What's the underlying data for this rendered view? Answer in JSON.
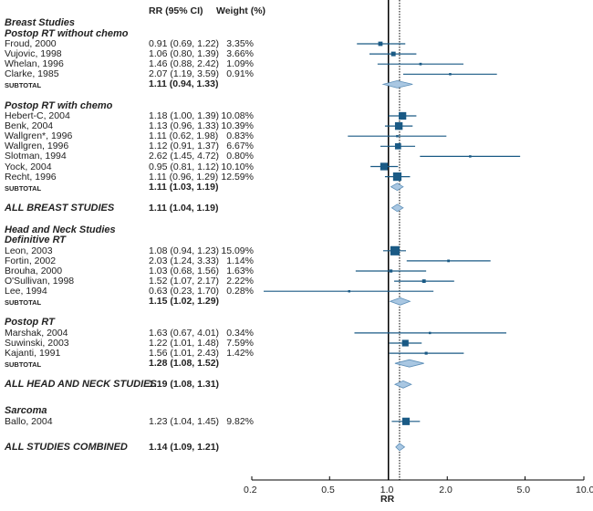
{
  "chart_data": {
    "type": "forest",
    "xlabel": "RR",
    "xscale": "log",
    "xlim": [
      0.2,
      10.0
    ],
    "ticks": [
      "0.2",
      "0.5",
      "1.0",
      "2.0",
      "5.0",
      "10.0"
    ],
    "reference_line": 1.0,
    "pooled_line": 1.14,
    "columns": {
      "rr": "RR (95% CI)",
      "weight": "Weight (%)"
    },
    "colors": {
      "marker": "#1a5a85",
      "diamond_fill": "#a9c7e2",
      "diamond_stroke": "#5d8fb8"
    },
    "rows": [
      {
        "type": "group",
        "label": "Breast Studies"
      },
      {
        "type": "group",
        "label": "Postop RT without chemo"
      },
      {
        "type": "study",
        "label": "Froud, 2000",
        "rr": 0.91,
        "lo": 0.69,
        "hi": 1.22,
        "rr_text": "0.91 (0.69, 1.22)",
        "weight": 3.35,
        "weight_text": "3.35%"
      },
      {
        "type": "study",
        "label": "Vujovic, 1998",
        "rr": 1.06,
        "lo": 0.8,
        "hi": 1.39,
        "rr_text": "1.06 (0.80, 1.39)",
        "weight": 3.66,
        "weight_text": "3.66%"
      },
      {
        "type": "study",
        "label": "Whelan, 1996",
        "rr": 1.46,
        "lo": 0.88,
        "hi": 2.42,
        "rr_text": "1.46 (0.88, 2.42)",
        "weight": 1.09,
        "weight_text": "1.09%"
      },
      {
        "type": "study",
        "label": "Clarke, 1985",
        "rr": 2.07,
        "lo": 1.19,
        "hi": 3.59,
        "rr_text": "2.07 (1.19, 3.59)",
        "weight": 0.91,
        "weight_text": "0.91%"
      },
      {
        "type": "subtotal",
        "label": "SUBTOTAL",
        "rr": 1.11,
        "lo": 0.94,
        "hi": 1.33,
        "rr_text": "1.11 (0.94, 1.33)"
      },
      {
        "type": "gap"
      },
      {
        "type": "group",
        "label": "Postop RT with chemo"
      },
      {
        "type": "study",
        "label": "Hebert-C, 2004",
        "rr": 1.18,
        "lo": 1.0,
        "hi": 1.39,
        "rr_text": "1.18 (1.00, 1.39)",
        "weight": 10.08,
        "weight_text": "10.08%"
      },
      {
        "type": "study",
        "label": "Benk, 2004",
        "rr": 1.13,
        "lo": 0.96,
        "hi": 1.33,
        "rr_text": "1.13 (0.96, 1.33)",
        "weight": 10.39,
        "weight_text": "10.39%"
      },
      {
        "type": "study",
        "label": "Wallgren*, 1996",
        "rr": 1.11,
        "lo": 0.62,
        "hi": 1.98,
        "rr_text": "1.11 (0.62, 1.98)",
        "weight": 0.83,
        "weight_text": "0.83%"
      },
      {
        "type": "study",
        "label": "Wallgren, 1996",
        "rr": 1.12,
        "lo": 0.91,
        "hi": 1.37,
        "rr_text": "1.12 (0.91, 1.37)",
        "weight": 6.67,
        "weight_text": "6.67%"
      },
      {
        "type": "study",
        "label": "Slotman, 1994",
        "rr": 2.62,
        "lo": 1.45,
        "hi": 4.72,
        "rr_text": "2.62 (1.45, 4.72)",
        "weight": 0.8,
        "weight_text": "0.80%"
      },
      {
        "type": "study",
        "label": "Yock, 2004",
        "rr": 0.95,
        "lo": 0.81,
        "hi": 1.12,
        "rr_text": "0.95 (0.81, 1.12)",
        "weight": 10.1,
        "weight_text": "10.10%"
      },
      {
        "type": "study",
        "label": "Recht, 1996",
        "rr": 1.11,
        "lo": 0.96,
        "hi": 1.29,
        "rr_text": "1.11 (0.96, 1.29)",
        "weight": 12.59,
        "weight_text": "12.59%"
      },
      {
        "type": "subtotal",
        "label": "SUBTOTAL",
        "rr": 1.11,
        "lo": 1.03,
        "hi": 1.19,
        "rr_text": "1.11 (1.03, 1.19)"
      },
      {
        "type": "gap"
      },
      {
        "type": "overall",
        "label": "ALL BREAST STUDIES",
        "rr": 1.11,
        "lo": 1.04,
        "hi": 1.19,
        "rr_text": "1.11 (1.04, 1.19)"
      },
      {
        "type": "gap"
      },
      {
        "type": "group",
        "label": "Head and Neck Studies"
      },
      {
        "type": "group",
        "label": "Definitive RT"
      },
      {
        "type": "study",
        "label": "Leon, 2003",
        "rr": 1.08,
        "lo": 0.94,
        "hi": 1.23,
        "rr_text": "1.08 (0.94, 1.23)",
        "weight": 15.09,
        "weight_text": "15.09%"
      },
      {
        "type": "study",
        "label": "Fortin, 2002",
        "rr": 2.03,
        "lo": 1.24,
        "hi": 3.33,
        "rr_text": "2.03 (1.24, 3.33)",
        "weight": 1.14,
        "weight_text": "1.14%"
      },
      {
        "type": "study",
        "label": "Brouha, 2000",
        "rr": 1.03,
        "lo": 0.68,
        "hi": 1.56,
        "rr_text": "1.03 (0.68, 1.56)",
        "weight": 1.63,
        "weight_text": "1.63%"
      },
      {
        "type": "study",
        "label": "O'Sullivan, 1998",
        "rr": 1.52,
        "lo": 1.07,
        "hi": 2.17,
        "rr_text": "1.52 (1.07, 2.17)",
        "weight": 2.22,
        "weight_text": "2.22%"
      },
      {
        "type": "study",
        "label": "Lee, 1994",
        "rr": 0.63,
        "lo": 0.23,
        "hi": 1.7,
        "rr_text": "0.63 (0.23, 1.70)",
        "weight": 0.28,
        "weight_text": "0.28%"
      },
      {
        "type": "subtotal",
        "label": "SUBTOTAL",
        "rr": 1.15,
        "lo": 1.02,
        "hi": 1.29,
        "rr_text": "1.15 (1.02, 1.29)"
      },
      {
        "type": "gap"
      },
      {
        "type": "group",
        "label": "Postop RT"
      },
      {
        "type": "study",
        "label": "Marshak, 2004",
        "rr": 1.63,
        "lo": 0.67,
        "hi": 4.01,
        "rr_text": "1.63 (0.67, 4.01)",
        "weight": 0.34,
        "weight_text": "0.34%"
      },
      {
        "type": "study",
        "label": "Suwinski, 2003",
        "rr": 1.22,
        "lo": 1.01,
        "hi": 1.48,
        "rr_text": "1.22 (1.01, 1.48)",
        "weight": 7.59,
        "weight_text": "7.59%"
      },
      {
        "type": "study",
        "label": "Kajanti, 1991",
        "rr": 1.56,
        "lo": 1.01,
        "hi": 2.43,
        "rr_text": "1.56 (1.01, 2.43)",
        "weight": 1.42,
        "weight_text": "1.42%"
      },
      {
        "type": "subtotal",
        "label": "SUBTOTAL",
        "rr": 1.28,
        "lo": 1.08,
        "hi": 1.52,
        "rr_text": "1.28 (1.08, 1.52)"
      },
      {
        "type": "gap"
      },
      {
        "type": "overall",
        "label": "ALL HEAD AND NECK STUDIES",
        "rr": 1.19,
        "lo": 1.08,
        "hi": 1.31,
        "rr_text": "1.19 (1.08, 1.31)"
      },
      {
        "type": "gap2"
      },
      {
        "type": "group",
        "label": "Sarcoma"
      },
      {
        "type": "study",
        "label": "Ballo, 2004",
        "rr": 1.23,
        "lo": 1.04,
        "hi": 1.45,
        "rr_text": "1.23 (1.04, 1.45)",
        "weight": 9.82,
        "weight_text": "9.82%"
      },
      {
        "type": "gap2"
      },
      {
        "type": "overall",
        "label": "ALL STUDIES COMBINED",
        "rr": 1.14,
        "lo": 1.09,
        "hi": 1.21,
        "rr_text": "1.14 (1.09, 1.21)"
      }
    ]
  }
}
